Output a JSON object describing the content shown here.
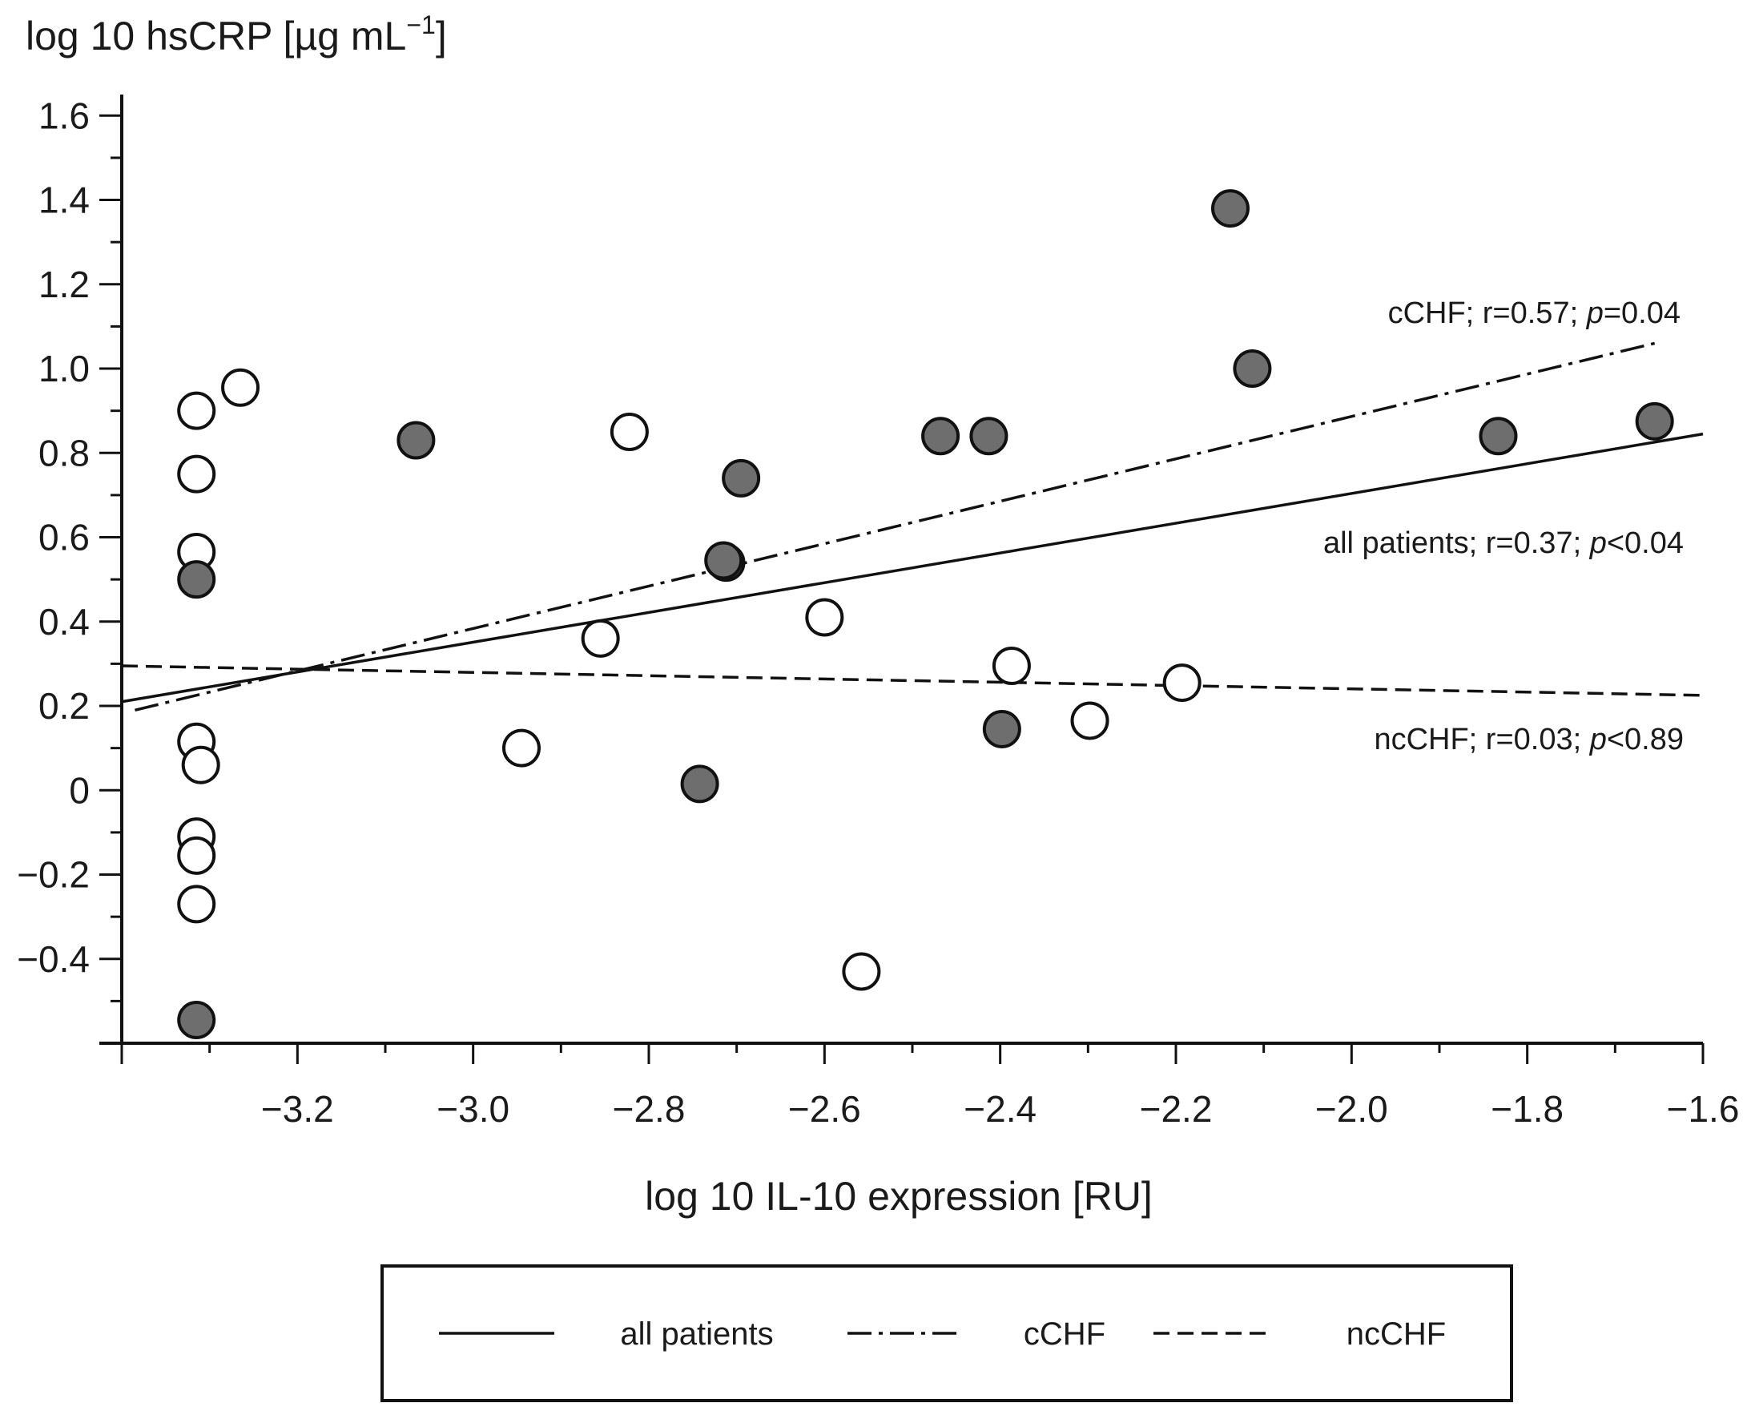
{
  "chart_data": {
    "type": "scatter",
    "ylabel": "log 10 hsCRP [µg mL⁻¹]",
    "ylabel_parts": {
      "main": "log 10 hsCRP [µg mL",
      "sup": "−1",
      "close": "]"
    },
    "xlabel": "log 10 IL-10 expression [RU]",
    "xlim": [
      -3.4,
      -1.6
    ],
    "ylim": [
      -0.6,
      1.65
    ],
    "x_ticks": [
      -3.2,
      -3.0,
      -2.8,
      -2.6,
      -2.4,
      -2.2,
      -2.0,
      -1.8,
      -1.6
    ],
    "x_tick_labels": [
      "−3.2",
      "−3.0",
      "−2.8",
      "−2.6",
      "−2.4",
      "−2.2",
      "−2.0",
      "−1.8",
      "−1.6"
    ],
    "y_ticks": [
      -0.4,
      -0.2,
      0,
      0.2,
      0.4,
      0.6,
      0.8,
      1.0,
      1.2,
      1.4,
      1.6
    ],
    "y_tick_labels": [
      "−0.4",
      "−0.2",
      "0",
      "0.2",
      "0.4",
      "0.6",
      "0.8",
      "1.0",
      "1.2",
      "1.4",
      "1.6"
    ],
    "series": [
      {
        "name": "ncCHF",
        "marker": "open-circle",
        "fill": "#ffffff",
        "points": [
          [
            -3.315,
            0.9
          ],
          [
            -3.315,
            0.75
          ],
          [
            -3.315,
            0.565
          ],
          [
            -3.265,
            0.955
          ],
          [
            -3.315,
            0.115
          ],
          [
            -3.31,
            0.06
          ],
          [
            -3.315,
            -0.11
          ],
          [
            -3.315,
            -0.155
          ],
          [
            -3.315,
            -0.27
          ],
          [
            -2.945,
            0.1
          ],
          [
            -2.855,
            0.36
          ],
          [
            -2.822,
            0.85
          ],
          [
            -2.712,
            0.54
          ],
          [
            -2.6,
            0.41
          ],
          [
            -2.558,
            -0.43
          ],
          [
            -2.387,
            0.295
          ],
          [
            -2.298,
            0.165
          ],
          [
            -2.193,
            0.255
          ]
        ]
      },
      {
        "name": "cCHF",
        "marker": "filled-circle",
        "fill": "#6e6e6e",
        "points": [
          [
            -3.315,
            0.5
          ],
          [
            -3.315,
            -0.545
          ],
          [
            -3.065,
            0.83
          ],
          [
            -2.742,
            0.015
          ],
          [
            -2.715,
            0.545
          ],
          [
            -2.695,
            0.74
          ],
          [
            -2.468,
            0.84
          ],
          [
            -2.413,
            0.84
          ],
          [
            -2.398,
            0.145
          ],
          [
            -2.138,
            1.38
          ],
          [
            -2.113,
            1.0
          ],
          [
            -1.833,
            0.84
          ],
          [
            -1.655,
            0.875
          ]
        ]
      }
    ],
    "regression_lines": [
      {
        "name": "all patients",
        "style": "solid",
        "x": [
          -3.4,
          -1.6
        ],
        "y": [
          0.21,
          0.845
        ],
        "label": "all patients; r=0.37; ",
        "p_symbol": "p",
        "p_text": "<0.04"
      },
      {
        "name": "cCHF",
        "style": "dash-dot",
        "x": [
          -3.385,
          -1.655
        ],
        "y": [
          0.19,
          1.06
        ],
        "label": "cCHF; r=0.57; ",
        "p_symbol": "p",
        "p_text": "=0.04"
      },
      {
        "name": "ncCHF",
        "style": "dashed",
        "x": [
          -3.4,
          -1.6
        ],
        "y": [
          0.295,
          0.225
        ],
        "label": "ncCHF; r=0.03; ",
        "p_symbol": "p",
        "p_text": "<0.89"
      }
    ],
    "legend": {
      "position": "bottom-center",
      "entries": [
        {
          "label": "all patients",
          "style": "solid"
        },
        {
          "label": "cCHF",
          "style": "dash-dot"
        },
        {
          "label": "ncCHF",
          "style": "dashed"
        }
      ]
    }
  }
}
